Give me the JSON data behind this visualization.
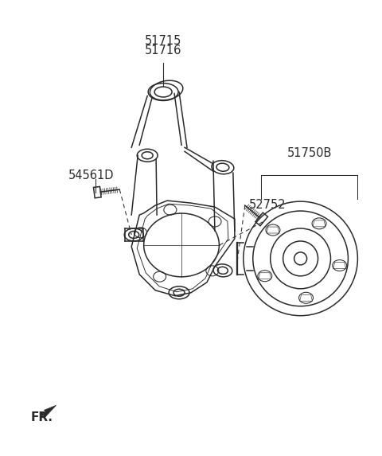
{
  "bg_color": "#ffffff",
  "line_color": "#2a2a2a",
  "label_color": "#1a1a1a",
  "figsize": [
    4.8,
    5.73
  ],
  "dpi": 100,
  "label_51715": "51715",
  "label_51716": "51716",
  "label_54561D": "54561D",
  "label_51750B": "51750B",
  "label_52752": "52752",
  "label_FR": "FR."
}
